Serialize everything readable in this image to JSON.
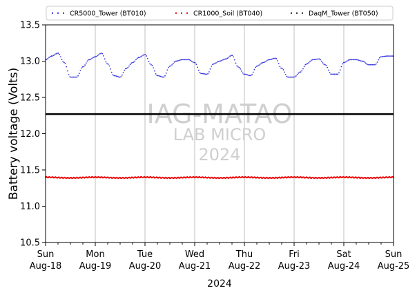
{
  "chart_data": {
    "type": "scatter",
    "title": "",
    "xlabel": "2024",
    "ylabel": "Battery voltage (Volts)",
    "ylim": [
      10.5,
      13.5
    ],
    "xlim": [
      "2024-08-18",
      "2024-08-25"
    ],
    "yticks": [
      "10.5",
      "11.0",
      "11.5",
      "12.0",
      "12.5",
      "13.0",
      "13.5"
    ],
    "xticks": [
      {
        "day": "Sun",
        "date": "Aug-18"
      },
      {
        "day": "Mon",
        "date": "Aug-19"
      },
      {
        "day": "Tue",
        "date": "Aug-20"
      },
      {
        "day": "Wed",
        "date": "Aug-21"
      },
      {
        "day": "Thu",
        "date": "Aug-22"
      },
      {
        "day": "Fri",
        "date": "Aug-23"
      },
      {
        "day": "Sat",
        "date": "Aug-24"
      },
      {
        "day": "Sun",
        "date": "Aug-25"
      }
    ],
    "grid": "vertical-major",
    "legend_position": "top",
    "legend": [
      {
        "label": "CR5000_Tower (BT010)",
        "color": "#3333dd"
      },
      {
        "label": "CR1000_Soil (BT040)",
        "color": "#ee0000"
      },
      {
        "label": "DaqM_Tower (BT050)",
        "color": "#222222"
      }
    ],
    "reference_line": {
      "y": 12.27,
      "color": "#000000"
    },
    "watermark": {
      "line1": "IAG-MATAO",
      "line2": "LAB MICRO",
      "line3": "2024"
    },
    "series": [
      {
        "name": "CR5000_Tower (BT010)",
        "color": "#3333dd",
        "x": [
          "2024-08-18 00:00",
          "2024-08-18 03:00",
          "2024-08-18 06:00",
          "2024-08-18 09:00",
          "2024-08-18 12:00",
          "2024-08-18 15:00",
          "2024-08-18 18:00",
          "2024-08-18 21:00",
          "2024-08-19 00:00",
          "2024-08-19 03:00",
          "2024-08-19 06:00",
          "2024-08-19 09:00",
          "2024-08-19 12:00",
          "2024-08-19 15:00",
          "2024-08-19 18:00",
          "2024-08-19 21:00",
          "2024-08-20 00:00",
          "2024-08-20 03:00",
          "2024-08-20 06:00",
          "2024-08-20 09:00",
          "2024-08-20 12:00",
          "2024-08-20 15:00",
          "2024-08-20 18:00",
          "2024-08-20 21:00",
          "2024-08-21 00:00",
          "2024-08-21 03:00",
          "2024-08-21 06:00",
          "2024-08-21 09:00",
          "2024-08-21 12:00",
          "2024-08-21 15:00",
          "2024-08-21 18:00",
          "2024-08-21 21:00",
          "2024-08-22 00:00",
          "2024-08-22 03:00",
          "2024-08-22 06:00",
          "2024-08-22 09:00",
          "2024-08-22 12:00",
          "2024-08-22 15:00",
          "2024-08-22 18:00",
          "2024-08-22 21:00",
          "2024-08-23 00:00",
          "2024-08-23 03:00",
          "2024-08-23 06:00",
          "2024-08-23 09:00",
          "2024-08-23 12:00",
          "2024-08-23 15:00",
          "2024-08-23 18:00",
          "2024-08-23 21:00",
          "2024-08-24 00:00",
          "2024-08-24 03:00",
          "2024-08-24 06:00",
          "2024-08-24 09:00",
          "2024-08-24 12:00",
          "2024-08-24 15:00",
          "2024-08-24 18:00",
          "2024-08-24 21:00",
          "2024-08-25 00:00"
        ],
        "y": [
          13.02,
          13.07,
          13.11,
          12.98,
          12.78,
          12.78,
          12.92,
          13.02,
          13.06,
          13.11,
          12.96,
          12.8,
          12.78,
          12.9,
          12.98,
          13.05,
          13.09,
          12.95,
          12.8,
          12.78,
          12.93,
          13.0,
          13.02,
          13.02,
          12.98,
          12.83,
          12.82,
          12.96,
          13.0,
          13.03,
          13.08,
          12.92,
          12.82,
          12.8,
          12.93,
          12.98,
          13.02,
          13.04,
          12.9,
          12.78,
          12.78,
          12.85,
          12.96,
          13.02,
          13.03,
          12.95,
          12.82,
          12.82,
          12.98,
          13.02,
          13.02,
          13.0,
          12.95,
          12.95,
          13.06,
          13.07,
          13.07
        ]
      },
      {
        "name": "CR1000_Soil (BT040)",
        "color": "#ee0000",
        "x": [
          "2024-08-18 00:00",
          "2024-08-18 12:00",
          "2024-08-19 00:00",
          "2024-08-19 12:00",
          "2024-08-20 00:00",
          "2024-08-20 12:00",
          "2024-08-21 00:00",
          "2024-08-21 12:00",
          "2024-08-22 00:00",
          "2024-08-22 12:00",
          "2024-08-23 00:00",
          "2024-08-23 12:00",
          "2024-08-24 00:00",
          "2024-08-24 12:00",
          "2024-08-25 00:00"
        ],
        "y": [
          11.4,
          11.39,
          11.4,
          11.39,
          11.4,
          11.39,
          11.4,
          11.39,
          11.4,
          11.39,
          11.4,
          11.39,
          11.4,
          11.39,
          11.4
        ]
      },
      {
        "name": "DaqM_Tower (BT050)",
        "color": "#222222",
        "x": [],
        "y": []
      }
    ]
  }
}
